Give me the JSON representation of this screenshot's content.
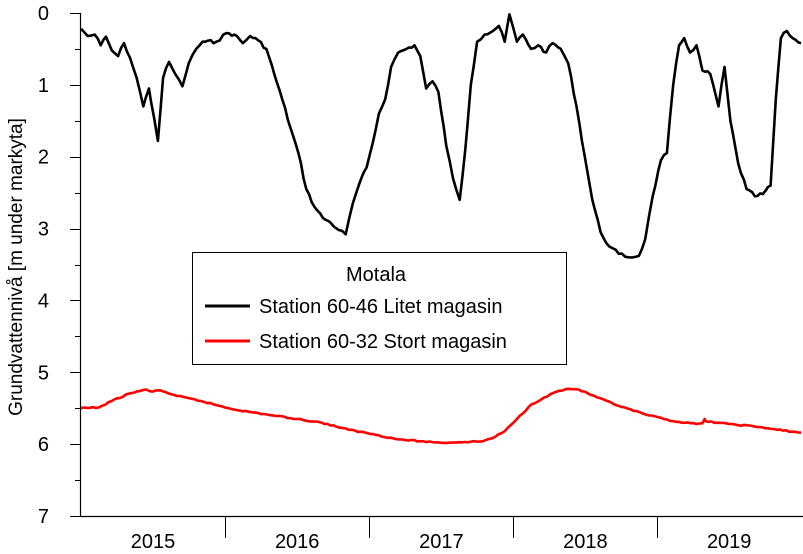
{
  "chart_data": {
    "type": "line",
    "title": "",
    "ylabel": "Grundvattennivå [m under markyta]",
    "ylim": [
      0,
      7
    ],
    "y_inverted": true,
    "yticks": [
      "0",
      "1",
      "2",
      "3",
      "4",
      "5",
      "6",
      "7"
    ],
    "xlim": [
      "2015-01-01",
      "2019-12-31"
    ],
    "x_year_labels": [
      "2015",
      "2016",
      "2017",
      "2018",
      "2019"
    ],
    "grid": false,
    "legend": {
      "title": "Motala",
      "placement": "center"
    },
    "series": [
      {
        "name": "Station 60-46 Litet magasin",
        "color": "#000000",
        "points": [
          [
            "2015-01-01",
            0.22
          ],
          [
            "2015-01-18",
            0.32
          ],
          [
            "2015-02-05",
            0.3
          ],
          [
            "2015-02-20",
            0.45
          ],
          [
            "2015-03-05",
            0.33
          ],
          [
            "2015-03-20",
            0.52
          ],
          [
            "2015-04-05",
            0.6
          ],
          [
            "2015-04-20",
            0.42
          ],
          [
            "2015-05-05",
            0.62
          ],
          [
            "2015-05-22",
            0.9
          ],
          [
            "2015-06-08",
            1.3
          ],
          [
            "2015-06-22",
            1.05
          ],
          [
            "2015-07-05",
            1.45
          ],
          [
            "2015-07-15",
            1.78
          ],
          [
            "2015-07-28",
            0.9
          ],
          [
            "2015-08-12",
            0.68
          ],
          [
            "2015-08-28",
            0.85
          ],
          [
            "2015-09-15",
            1.02
          ],
          [
            "2015-10-01",
            0.7
          ],
          [
            "2015-10-20",
            0.5
          ],
          [
            "2015-11-05",
            0.4
          ],
          [
            "2015-12-10",
            0.4
          ],
          [
            "2016-01-05",
            0.28
          ],
          [
            "2016-01-25",
            0.3
          ],
          [
            "2016-02-15",
            0.42
          ],
          [
            "2016-03-05",
            0.32
          ],
          [
            "2016-03-25",
            0.38
          ],
          [
            "2016-04-15",
            0.5
          ],
          [
            "2016-05-05",
            0.85
          ],
          [
            "2016-05-25",
            1.2
          ],
          [
            "2016-06-15",
            1.6
          ],
          [
            "2016-07-05",
            1.95
          ],
          [
            "2016-07-25",
            2.45
          ],
          [
            "2016-08-15",
            2.7
          ],
          [
            "2016-09-05",
            2.85
          ],
          [
            "2016-09-25",
            2.92
          ],
          [
            "2016-10-15",
            3.02
          ],
          [
            "2016-11-02",
            3.08
          ],
          [
            "2016-11-20",
            2.65
          ],
          [
            "2016-12-05",
            2.4
          ],
          [
            "2016-12-25",
            2.15
          ],
          [
            "2017-01-10",
            1.8
          ],
          [
            "2017-01-25",
            1.4
          ],
          [
            "2017-02-10",
            1.2
          ],
          [
            "2017-02-25",
            0.75
          ],
          [
            "2017-03-15",
            0.55
          ],
          [
            "2017-04-05",
            0.5
          ],
          [
            "2017-04-25",
            0.45
          ],
          [
            "2017-05-10",
            0.6
          ],
          [
            "2017-05-25",
            1.05
          ],
          [
            "2017-06-10",
            0.95
          ],
          [
            "2017-06-25",
            1.1
          ],
          [
            "2017-07-15",
            1.85
          ],
          [
            "2017-08-01",
            2.3
          ],
          [
            "2017-08-18",
            2.6
          ],
          [
            "2017-09-01",
            1.9
          ],
          [
            "2017-09-15",
            1.0
          ],
          [
            "2017-10-01",
            0.4
          ],
          [
            "2017-10-20",
            0.3
          ],
          [
            "2017-11-10",
            0.25
          ],
          [
            "2017-11-25",
            0.18
          ],
          [
            "2017-12-10",
            0.4
          ],
          [
            "2017-12-22",
            0.02
          ],
          [
            "2018-01-10",
            0.4
          ],
          [
            "2018-01-25",
            0.3
          ],
          [
            "2018-02-15",
            0.5
          ],
          [
            "2018-03-05",
            0.45
          ],
          [
            "2018-03-25",
            0.55
          ],
          [
            "2018-04-10",
            0.42
          ],
          [
            "2018-05-01",
            0.5
          ],
          [
            "2018-05-20",
            0.7
          ],
          [
            "2018-06-10",
            1.3
          ],
          [
            "2018-07-01",
            2.0
          ],
          [
            "2018-07-20",
            2.6
          ],
          [
            "2018-08-10",
            3.05
          ],
          [
            "2018-09-01",
            3.25
          ],
          [
            "2018-09-25",
            3.35
          ],
          [
            "2018-10-20",
            3.4
          ],
          [
            "2018-11-15",
            3.38
          ],
          [
            "2018-12-01",
            3.15
          ],
          [
            "2018-12-20",
            2.55
          ],
          [
            "2019-01-10",
            2.05
          ],
          [
            "2019-01-25",
            1.95
          ],
          [
            "2019-02-10",
            1.0
          ],
          [
            "2019-02-25",
            0.45
          ],
          [
            "2019-03-10",
            0.35
          ],
          [
            "2019-03-25",
            0.55
          ],
          [
            "2019-04-10",
            0.45
          ],
          [
            "2019-04-25",
            0.8
          ],
          [
            "2019-05-15",
            0.85
          ],
          [
            "2019-06-05",
            1.3
          ],
          [
            "2019-06-20",
            0.75
          ],
          [
            "2019-07-05",
            1.5
          ],
          [
            "2019-07-25",
            2.1
          ],
          [
            "2019-08-15",
            2.45
          ],
          [
            "2019-09-05",
            2.55
          ],
          [
            "2019-09-25",
            2.52
          ],
          [
            "2019-10-15",
            2.4
          ],
          [
            "2019-10-28",
            1.2
          ],
          [
            "2019-11-10",
            0.35
          ],
          [
            "2019-11-25",
            0.25
          ],
          [
            "2019-12-10",
            0.35
          ],
          [
            "2019-12-31",
            0.42
          ]
        ]
      },
      {
        "name": "Station 60-32 Stort magasin",
        "color": "#ff0000",
        "points": [
          [
            "2015-01-01",
            5.5
          ],
          [
            "2015-02-15",
            5.49
          ],
          [
            "2015-03-20",
            5.4
          ],
          [
            "2015-05-01",
            5.3
          ],
          [
            "2015-06-15",
            5.24
          ],
          [
            "2015-07-01",
            5.27
          ],
          [
            "2015-07-20",
            5.25
          ],
          [
            "2015-09-01",
            5.33
          ],
          [
            "2015-11-01",
            5.4
          ],
          [
            "2016-01-10",
            5.5
          ],
          [
            "2016-03-01",
            5.55
          ],
          [
            "2016-05-01",
            5.6
          ],
          [
            "2016-07-01",
            5.65
          ],
          [
            "2016-09-01",
            5.7
          ],
          [
            "2016-11-10",
            5.8
          ],
          [
            "2017-01-10",
            5.86
          ],
          [
            "2017-03-10",
            5.93
          ],
          [
            "2017-05-10",
            5.96
          ],
          [
            "2017-07-01",
            5.98
          ],
          [
            "2017-09-01",
            5.97
          ],
          [
            "2017-10-15",
            5.96
          ],
          [
            "2017-11-15",
            5.9
          ],
          [
            "2017-12-10",
            5.82
          ],
          [
            "2018-01-10",
            5.65
          ],
          [
            "2018-02-15",
            5.45
          ],
          [
            "2018-03-20",
            5.35
          ],
          [
            "2018-04-20",
            5.27
          ],
          [
            "2018-05-20",
            5.23
          ],
          [
            "2018-06-15",
            5.24
          ],
          [
            "2018-08-01",
            5.35
          ],
          [
            "2018-10-01",
            5.48
          ],
          [
            "2018-12-10",
            5.6
          ],
          [
            "2019-02-10",
            5.68
          ],
          [
            "2019-04-10",
            5.72
          ],
          [
            "2019-04-25",
            5.71
          ],
          [
            "2019-05-01",
            5.65
          ],
          [
            "2019-05-03",
            5.68
          ],
          [
            "2019-07-01",
            5.72
          ],
          [
            "2019-09-01",
            5.75
          ],
          [
            "2019-11-01",
            5.8
          ],
          [
            "2019-12-31",
            5.84
          ]
        ]
      }
    ]
  }
}
